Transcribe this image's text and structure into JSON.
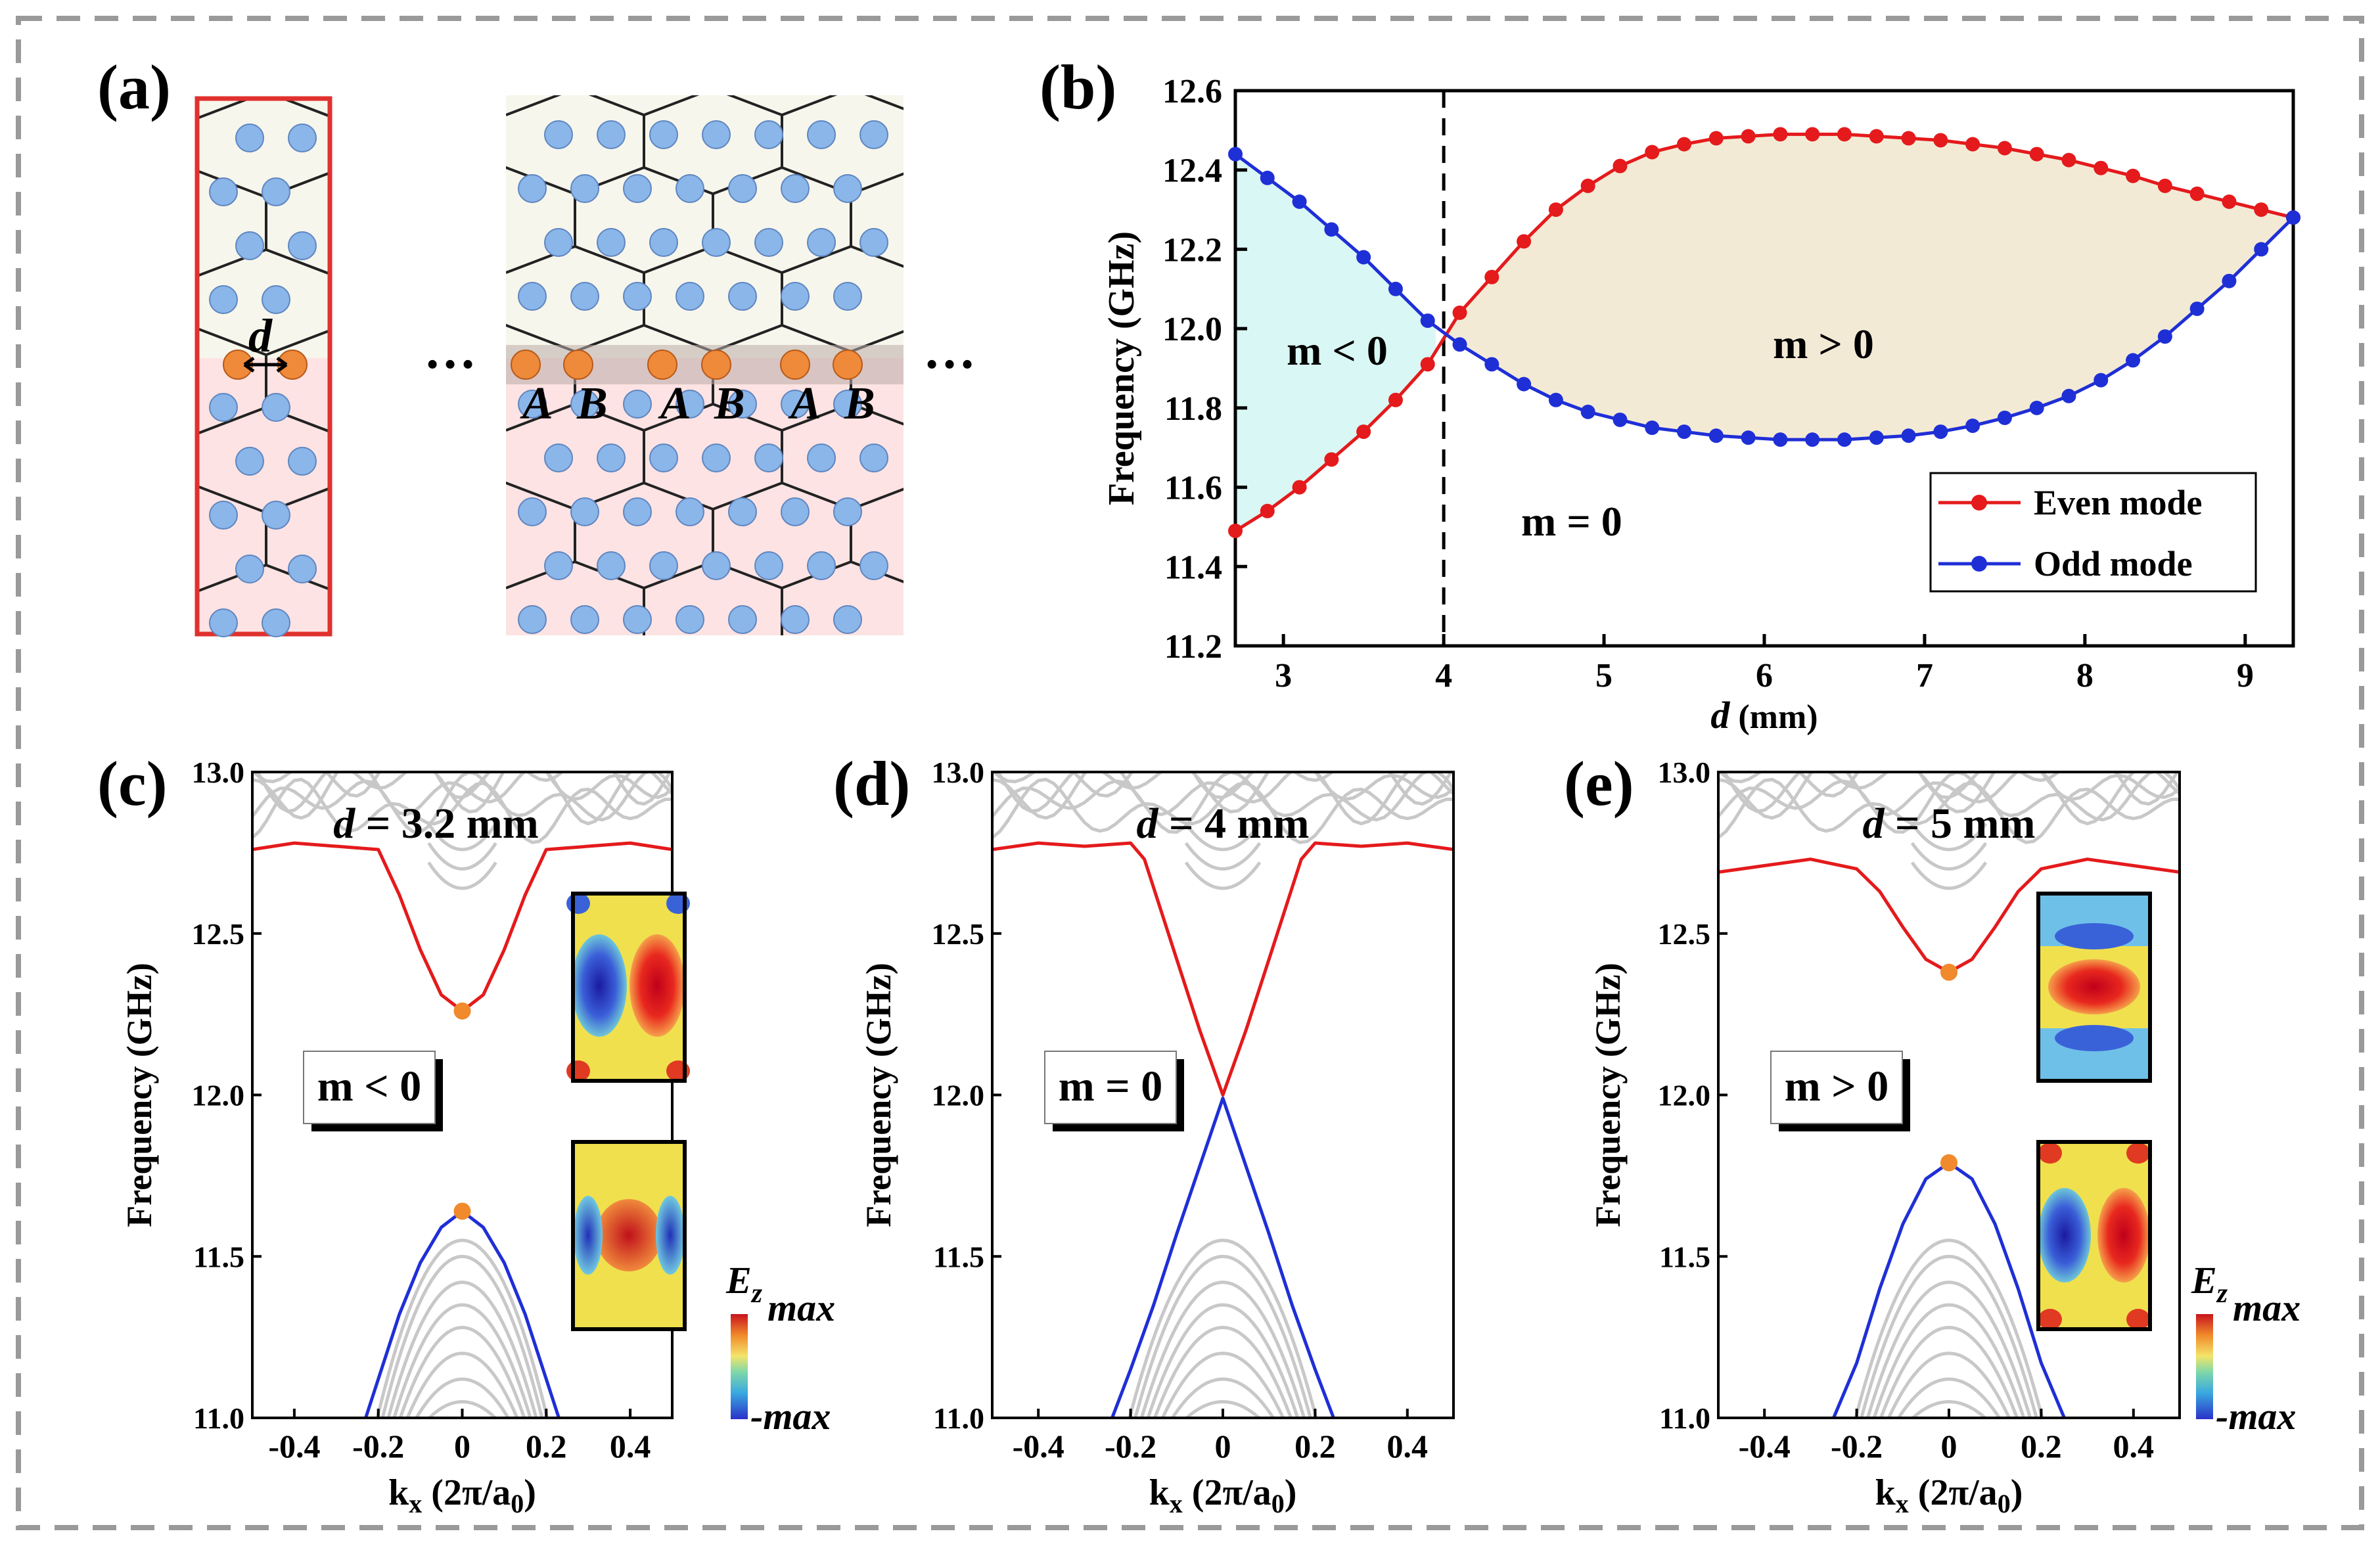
{
  "panel_labels": [
    "(a)",
    "(b)",
    "(c)",
    "(d)",
    "(e)"
  ],
  "panel_a": {
    "d_label": "d",
    "ellipsis": "…",
    "site_labels": [
      "A",
      "B",
      "A",
      "B",
      "A",
      "B"
    ]
  },
  "colorbar": {
    "title": "E",
    "subscript": "z",
    "max": "max",
    "min": "-max"
  },
  "colors": {
    "even": "#e41a1c",
    "odd": "#1f2fd6",
    "bulk": "#c8c8c8",
    "fill_neg": "#d9f7f4",
    "fill_pos": "#f3ead6",
    "marker": "#f08a2c",
    "frame_a": "#e0312e"
  },
  "chart_data": [
    {
      "id": "b",
      "type": "line",
      "xlabel": "d (mm)",
      "ylabel": "Frequency (GHz)",
      "xlim": [
        2.7,
        9.3
      ],
      "ylim": [
        11.2,
        12.6
      ],
      "xticks": [
        "3",
        "4",
        "5",
        "6",
        "7",
        "8",
        "9"
      ],
      "yticks": [
        "11.2",
        "11.4",
        "11.6",
        "11.8",
        "12.0",
        "12.2",
        "12.4",
        "12.6"
      ],
      "legend_position": "bottom-right",
      "grid": false,
      "vline": 4,
      "annotations": [
        "m < 0",
        "m > 0",
        "m = 0"
      ],
      "series": [
        {
          "name": "Even mode",
          "x": [
            2.7,
            2.9,
            3.1,
            3.3,
            3.5,
            3.7,
            3.9,
            4.1,
            4.3,
            4.5,
            4.7,
            4.9,
            5.1,
            5.3,
            5.5,
            5.7,
            5.9,
            6.1,
            6.3,
            6.5,
            6.7,
            6.9,
            7.1,
            7.3,
            7.5,
            7.7,
            7.9,
            8.1,
            8.3,
            8.5,
            8.7,
            8.9,
            9.1,
            9.3
          ],
          "y": [
            11.49,
            11.54,
            11.6,
            11.67,
            11.74,
            11.82,
            11.91,
            12.04,
            12.13,
            12.22,
            12.3,
            12.36,
            12.41,
            12.445,
            12.465,
            12.48,
            12.485,
            12.49,
            12.49,
            12.49,
            12.485,
            12.48,
            12.475,
            12.465,
            12.455,
            12.44,
            12.425,
            12.405,
            12.385,
            12.36,
            12.34,
            12.32,
            12.3,
            12.28
          ]
        },
        {
          "name": "Odd mode",
          "x": [
            2.7,
            2.9,
            3.1,
            3.3,
            3.5,
            3.7,
            3.9,
            4.1,
            4.3,
            4.5,
            4.7,
            4.9,
            5.1,
            5.3,
            5.5,
            5.7,
            5.9,
            6.1,
            6.3,
            6.5,
            6.7,
            6.9,
            7.1,
            7.3,
            7.5,
            7.7,
            7.9,
            8.1,
            8.3,
            8.5,
            8.7,
            8.9,
            9.1,
            9.3
          ],
          "y": [
            12.44,
            12.38,
            12.32,
            12.25,
            12.18,
            12.1,
            12.02,
            11.96,
            11.91,
            11.86,
            11.82,
            11.79,
            11.77,
            11.75,
            11.74,
            11.73,
            11.725,
            11.72,
            11.72,
            11.72,
            11.725,
            11.73,
            11.74,
            11.755,
            11.775,
            11.8,
            11.83,
            11.87,
            11.92,
            11.98,
            12.05,
            12.12,
            12.2,
            12.28
          ]
        }
      ]
    },
    {
      "id": "c",
      "type": "line",
      "xlabel": "kx (2π/a0)",
      "ylabel": "Frequency (GHz)",
      "xlim": [
        -0.5,
        0.5
      ],
      "ylim": [
        11.0,
        13.0
      ],
      "xticks": [
        "-0.4",
        "-0.2",
        "0",
        "0.2",
        "0.4"
      ],
      "yticks": [
        "11.0",
        "11.5",
        "12.0",
        "12.5",
        "13.0"
      ],
      "title": "d = 3.2 mm",
      "annotation": "m < 0",
      "series": [
        {
          "name": "upper",
          "x": [
            -0.5,
            -0.4,
            -0.3,
            -0.2,
            -0.15,
            -0.1,
            -0.05,
            0,
            0.05,
            0.1,
            0.15,
            0.2,
            0.3,
            0.4,
            0.5
          ],
          "y": [
            12.76,
            12.78,
            12.77,
            12.76,
            12.62,
            12.45,
            12.31,
            12.26,
            12.31,
            12.45,
            12.62,
            12.76,
            12.77,
            12.78,
            12.76
          ]
        },
        {
          "name": "lower",
          "x": [
            -0.23,
            -0.2,
            -0.15,
            -0.1,
            -0.05,
            0,
            0.05,
            0.1,
            0.15,
            0.2,
            0.23
          ],
          "y": [
            11.0,
            11.12,
            11.32,
            11.48,
            11.59,
            11.64,
            11.59,
            11.48,
            11.32,
            11.12,
            11.0
          ]
        }
      ],
      "markers": [
        [
          0,
          12.26
        ],
        [
          0,
          11.64
        ]
      ]
    },
    {
      "id": "d",
      "type": "line",
      "xlabel": "kx (2π/a0)",
      "ylabel": "Frequency (GHz)",
      "xlim": [
        -0.5,
        0.5
      ],
      "ylim": [
        11.0,
        13.0
      ],
      "xticks": [
        "-0.4",
        "-0.2",
        "0",
        "0.2",
        "0.4"
      ],
      "yticks": [
        "11.0",
        "11.5",
        "12.0",
        "12.5",
        "13.0"
      ],
      "title": "d = 4 mm",
      "annotation": "m = 0",
      "series": [
        {
          "name": "upper",
          "x": [
            -0.5,
            -0.4,
            -0.3,
            -0.2,
            -0.17,
            -0.1,
            -0.05,
            0,
            0.05,
            0.1,
            0.17,
            0.2,
            0.3,
            0.4,
            0.5
          ],
          "y": [
            12.76,
            12.78,
            12.77,
            12.78,
            12.73,
            12.42,
            12.2,
            12.0,
            12.2,
            12.42,
            12.73,
            12.78,
            12.77,
            12.78,
            12.76
          ]
        },
        {
          "name": "lower",
          "x": [
            -0.24,
            -0.2,
            -0.15,
            -0.1,
            -0.05,
            0,
            0.05,
            0.1,
            0.15,
            0.2,
            0.24
          ],
          "y": [
            11.0,
            11.15,
            11.35,
            11.57,
            11.78,
            11.99,
            11.78,
            11.57,
            11.35,
            11.15,
            11.0
          ]
        }
      ]
    },
    {
      "id": "e",
      "type": "line",
      "xlabel": "kx (2π/a0)",
      "ylabel": "Frequency (GHz)",
      "xlim": [
        -0.5,
        0.5
      ],
      "ylim": [
        11.0,
        13.0
      ],
      "xticks": [
        "-0.4",
        "-0.2",
        "0",
        "0.2",
        "0.4"
      ],
      "yticks": [
        "11.0",
        "11.5",
        "12.0",
        "12.5",
        "13.0"
      ],
      "title": "d = 5 mm",
      "annotation": "m > 0",
      "series": [
        {
          "name": "upper",
          "x": [
            -0.5,
            -0.4,
            -0.3,
            -0.2,
            -0.15,
            -0.1,
            -0.05,
            0,
            0.05,
            0.1,
            0.15,
            0.2,
            0.3,
            0.4,
            0.5
          ],
          "y": [
            12.69,
            12.71,
            12.73,
            12.7,
            12.63,
            12.52,
            12.42,
            12.38,
            12.42,
            12.52,
            12.63,
            12.7,
            12.73,
            12.71,
            12.69
          ]
        },
        {
          "name": "lower",
          "x": [
            -0.25,
            -0.2,
            -0.15,
            -0.1,
            -0.05,
            0,
            0.05,
            0.1,
            0.15,
            0.2,
            0.25
          ],
          "y": [
            11.0,
            11.17,
            11.4,
            11.6,
            11.74,
            11.79,
            11.74,
            11.6,
            11.4,
            11.17,
            11.0
          ]
        }
      ],
      "markers": [
        [
          0,
          12.38
        ],
        [
          0,
          11.79
        ]
      ]
    }
  ]
}
